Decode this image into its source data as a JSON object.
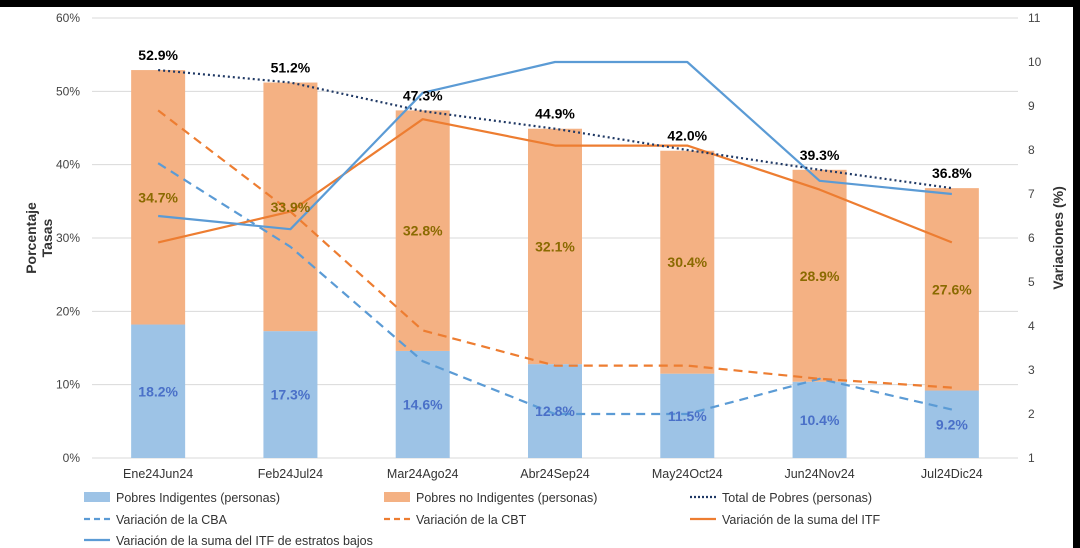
{
  "chart_data": {
    "type": "bar",
    "ylabel_left": [
      "Porcentaje",
      "Tasas"
    ],
    "ylabel_right": "Variaciones (%)",
    "ylim_left": [
      0,
      60
    ],
    "yticks_left": [
      "0%",
      "10%",
      "20%",
      "30%",
      "40%",
      "50%",
      "60%"
    ],
    "ylim_right": [
      1,
      11
    ],
    "yticks_right": [
      "1",
      "2",
      "3",
      "4",
      "5",
      "6",
      "7",
      "8",
      "9",
      "10",
      "11"
    ],
    "categories": [
      "Ene24Jun24",
      "Feb24Jul24",
      "Mar24Ago24",
      "Abr24Sep24",
      "May24Oct24",
      "Jun24Nov24",
      "Jul24Dic24"
    ],
    "stacked_bars": [
      {
        "name": "Pobres Indigentes (personas)",
        "color": "#9dc3e6",
        "values": [
          18.2,
          17.3,
          14.6,
          12.8,
          11.5,
          10.4,
          9.2
        ],
        "labels": [
          "18.2%",
          "17.3%",
          "14.6%",
          "12.8%",
          "11.5%",
          "10.4%",
          "9.2%"
        ]
      },
      {
        "name": "Pobres no Indigentes (personas)",
        "color": "#f4b183",
        "values": [
          34.7,
          33.9,
          32.8,
          32.1,
          30.4,
          28.9,
          27.6
        ],
        "labels": [
          "34.7%",
          "33.9%",
          "32.8%",
          "32.1%",
          "30.4%",
          "28.9%",
          "27.6%"
        ]
      }
    ],
    "total_series": {
      "name": "Total de Pobres (personas)",
      "color": "#1f3864",
      "style": "dotted",
      "values": [
        52.9,
        51.2,
        47.3,
        44.9,
        42.0,
        39.3,
        36.8
      ],
      "labels": [
        "52.9%",
        "51.2%",
        "47.3%",
        "44.9%",
        "42.0%",
        "39.3%",
        "36.8%"
      ]
    },
    "right_axis_series": [
      {
        "name": "Variación de la CBA",
        "color": "#5b9bd5",
        "style": "dashed",
        "values": [
          7.7,
          5.8,
          3.2,
          2.0,
          2.0,
          2.8,
          2.1
        ]
      },
      {
        "name": "Variación de la CBT",
        "color": "#ed7d31",
        "style": "dashed",
        "values": [
          8.9,
          6.6,
          3.9,
          3.1,
          3.1,
          2.8,
          2.6
        ]
      },
      {
        "name": "Variación de la suma del ITF",
        "color": "#ed7d31",
        "style": "solid",
        "values": [
          5.9,
          6.6,
          8.7,
          8.1,
          8.1,
          7.1,
          5.9
        ]
      },
      {
        "name": "Variación de la suma del ITF de estratos bajos",
        "color": "#5b9bd5",
        "style": "solid",
        "values": [
          6.5,
          6.2,
          9.3,
          10.0,
          10.0,
          7.3,
          7.0
        ]
      }
    ],
    "grid": true,
    "legend": "bottom"
  }
}
